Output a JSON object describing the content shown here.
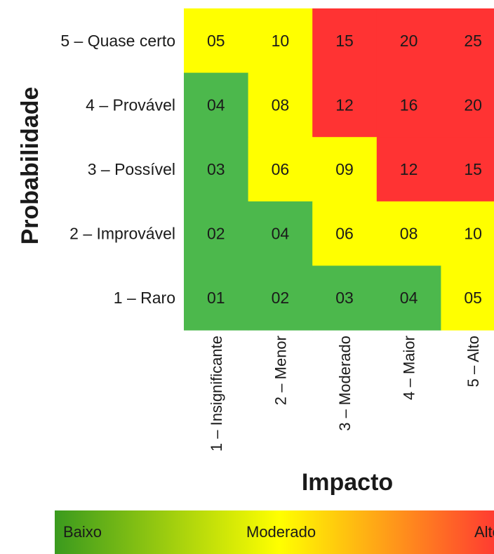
{
  "chart_data": {
    "type": "heatmap",
    "ylabel": "Probabilidade",
    "xlabel": "Impacto",
    "rows": [
      "5 – Quase certo",
      "4 – Provável",
      "3 – Possível",
      "2 – Improvável",
      "1 – Raro"
    ],
    "columns": [
      "1 – Insignificante",
      "2 – Menor",
      "3 – Moderado",
      "4 – Maior",
      "5 – Alto"
    ],
    "values": [
      [
        "05",
        "10",
        "15",
        "20",
        "25"
      ],
      [
        "04",
        "08",
        "12",
        "16",
        "20"
      ],
      [
        "03",
        "06",
        "09",
        "12",
        "15"
      ],
      [
        "02",
        "04",
        "06",
        "08",
        "10"
      ],
      [
        "01",
        "02",
        "03",
        "04",
        "05"
      ]
    ],
    "levels": [
      [
        "moderado",
        "moderado",
        "alto",
        "alto",
        "alto"
      ],
      [
        "baixo",
        "moderado",
        "alto",
        "alto",
        "alto"
      ],
      [
        "baixo",
        "moderado",
        "moderado",
        "alto",
        "alto"
      ],
      [
        "baixo",
        "baixo",
        "moderado",
        "moderado",
        "moderado"
      ],
      [
        "baixo",
        "baixo",
        "baixo",
        "baixo",
        "moderado"
      ]
    ],
    "colors": {
      "baixo": "#4cb84c",
      "moderado": "#ffff00",
      "alto": "#ff3333"
    },
    "legend": {
      "labels": [
        "Baixo",
        "Moderado",
        "Alto"
      ],
      "gradient": [
        "#3a9a1e",
        "#ffff00",
        "#ff3333"
      ]
    }
  }
}
